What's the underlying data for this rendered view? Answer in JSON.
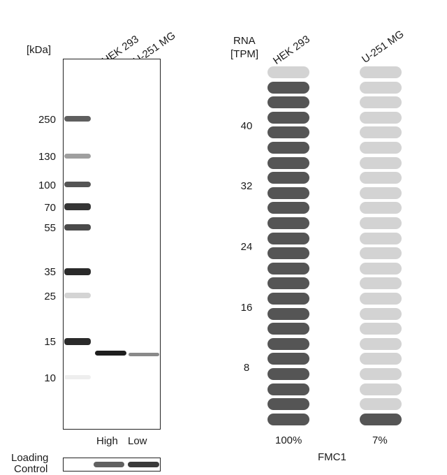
{
  "western_blot": {
    "unit_label": "[kDa]",
    "lanes": [
      "HEK 293",
      "U-251 MG"
    ],
    "lane_levels": [
      "High",
      "Low"
    ],
    "mw_markers": [
      "250",
      "130",
      "100",
      "70",
      "55",
      "35",
      "25",
      "15",
      "10"
    ],
    "loading_control_label_line1": "Loading",
    "loading_control_label_line2": "Control"
  },
  "rna": {
    "header_line1": "RNA",
    "header_line2": "[TPM]",
    "cell_lines": [
      "HEK 293",
      "U-251 MG"
    ],
    "y_ticks": [
      "40",
      "32",
      "24",
      "16",
      "8"
    ],
    "percentages": [
      "100%",
      "7%"
    ],
    "gene": "FMC1",
    "colors": {
      "filled": "#555555",
      "empty": "#d3d3d3"
    }
  },
  "chart_data": {
    "type": "bar",
    "categories": [
      "HEK 293",
      "U-251 MG"
    ],
    "values": [
      100,
      7
    ],
    "units": "%",
    "total_segments": 24,
    "filled_segments": [
      23,
      1
    ],
    "y_ticks": [
      40,
      32,
      24,
      16,
      8
    ],
    "label": "FMC1"
  }
}
